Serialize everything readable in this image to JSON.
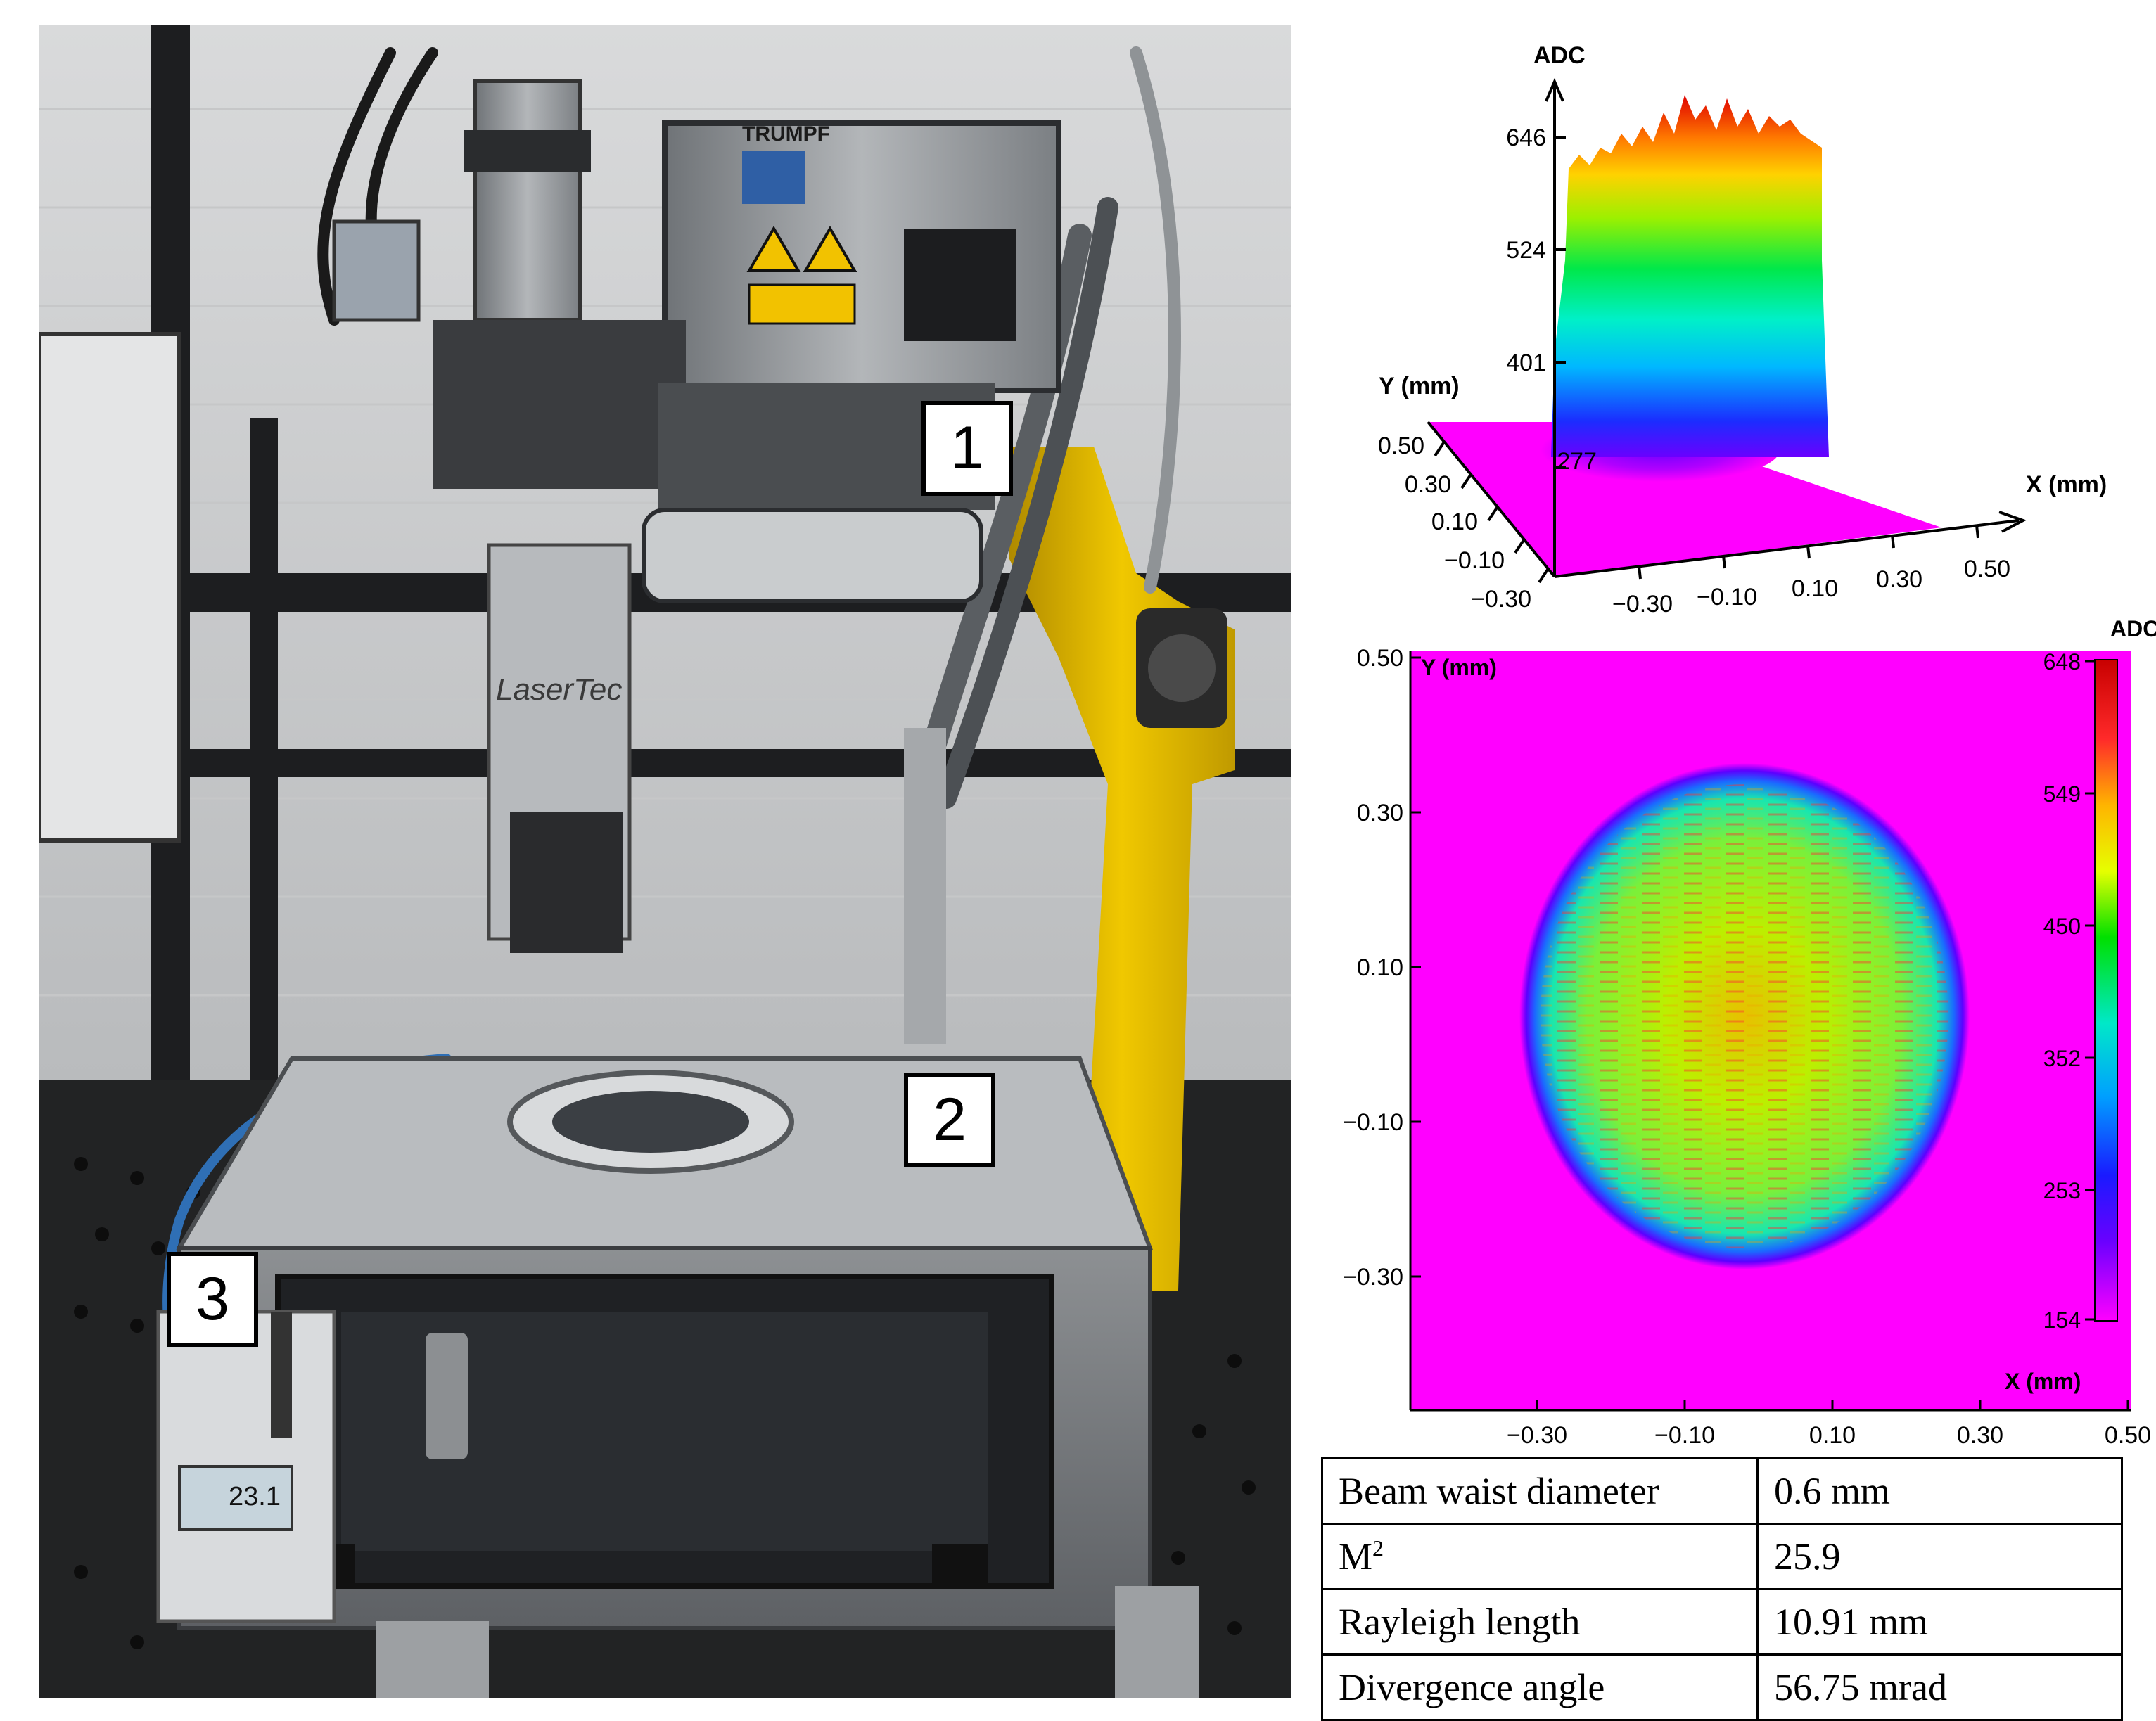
{
  "photo": {
    "brand_label": "TRUMPF",
    "logo_text": "LaserTec",
    "sensor_readout": "23.1",
    "callouts": [
      "1",
      "2",
      "3"
    ]
  },
  "surface_plot": {
    "z_label": "ADC",
    "y_label": "Y (mm)",
    "x_label": "X (mm)",
    "z_ticks": [
      "646",
      "524",
      "401",
      "277"
    ],
    "y_ticks": [
      "0.50",
      "0.30",
      "0.10",
      "−0.10",
      "−0.30"
    ],
    "x_ticks": [
      "−0.30",
      "−0.10",
      "0.10",
      "0.30",
      "0.50"
    ]
  },
  "heatmap_plot": {
    "y_label": "Y (mm)",
    "x_label": "X (mm)",
    "colorbar_label": "ADC",
    "y_ticks": [
      "0.50",
      "0.30",
      "0.10",
      "−0.10",
      "−0.30"
    ],
    "x_ticks": [
      "−0.30",
      "−0.10",
      "0.10",
      "0.30",
      "0.50"
    ],
    "colorbar_ticks": [
      "648",
      "549",
      "450",
      "352",
      "253",
      "154"
    ]
  },
  "table": {
    "rows": [
      {
        "label_main": "Beam waist diameter",
        "label_sup": "",
        "value": "0.6 mm"
      },
      {
        "label_main": "M",
        "label_sup": "2",
        "value": "25.9"
      },
      {
        "label_main": "Rayleigh length",
        "label_sup": "",
        "value": "10.91 mm"
      },
      {
        "label_main": "Divergence angle",
        "label_sup": "",
        "value": "56.75 mrad"
      }
    ]
  },
  "chart_data": [
    {
      "type": "surface",
      "xlabel": "X (mm)",
      "ylabel": "Y (mm)",
      "zlabel": "ADC",
      "x_ticks": [
        -0.3,
        -0.1,
        0.1,
        0.3,
        0.5
      ],
      "y_ticks": [
        -0.3,
        -0.1,
        0.1,
        0.3,
        0.5
      ],
      "z_ticks": [
        277,
        401,
        524,
        646
      ]
    },
    {
      "type": "heatmap",
      "xlabel": "X (mm)",
      "ylabel": "Y (mm)",
      "colorbar_label": "ADC",
      "x_ticks": [
        -0.3,
        -0.1,
        0.1,
        0.3,
        0.5
      ],
      "y_ticks": [
        -0.3,
        -0.1,
        0.1,
        0.3,
        0.5
      ],
      "colorbar_ticks": [
        648,
        549,
        450,
        352,
        253,
        154
      ],
      "colorbar_range": [
        154,
        648
      ]
    }
  ]
}
